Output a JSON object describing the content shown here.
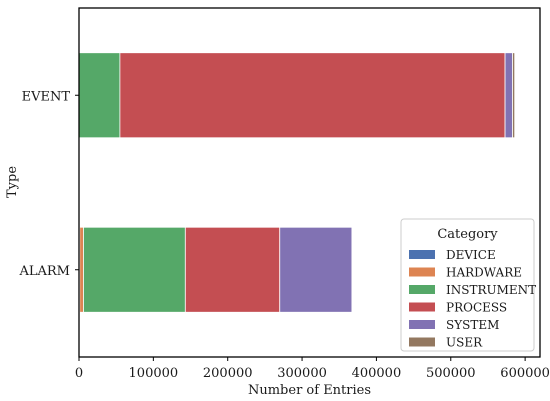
{
  "chart_data": {
    "type": "bar",
    "orientation": "horizontal",
    "stacked": true,
    "categories": [
      "EVENT",
      "ALARM"
    ],
    "xlabel": "Number of Entries",
    "ylabel": "Type",
    "xlim": [
      0,
      620000
    ],
    "xticks": [
      0,
      100000,
      200000,
      300000,
      400000,
      500000,
      600000
    ],
    "grid": false,
    "legend": {
      "title": "Category",
      "placement": "lower-right"
    },
    "series": [
      {
        "name": "DEVICE",
        "color": "#4c72b0",
        "values": [
          0,
          1000
        ]
      },
      {
        "name": "HARDWARE",
        "color": "#dd8452",
        "values": [
          0,
          5000
        ]
      },
      {
        "name": "INSTRUMENT",
        "color": "#55a868",
        "values": [
          55000,
          137000
        ]
      },
      {
        "name": "PROCESS",
        "color": "#c44e52",
        "values": [
          518000,
          127000
        ]
      },
      {
        "name": "SYSTEM",
        "color": "#8172b3",
        "values": [
          10000,
          97000
        ]
      },
      {
        "name": "USER",
        "color": "#937860",
        "values": [
          3000,
          0
        ]
      }
    ]
  }
}
